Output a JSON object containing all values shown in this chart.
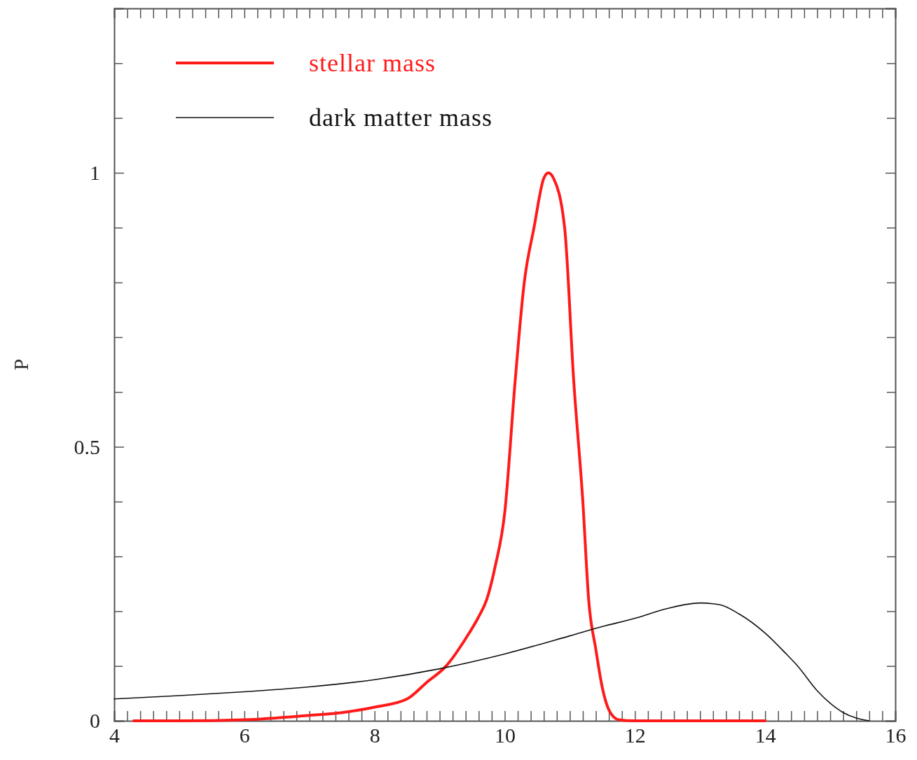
{
  "chart_data": {
    "type": "line",
    "ylabel": "P",
    "xlim": [
      4,
      16
    ],
    "ylim": [
      0,
      1.3
    ],
    "xticks": [
      4,
      {
        "value": 4.2,
        "label": null
      },
      {
        "value": 4.4,
        "label": null
      },
      {
        "value": 4.6,
        "label": null
      },
      {
        "value": 4.8,
        "label": null
      },
      {
        "value": 5,
        "label": null
      },
      {
        "value": 5.2,
        "label": null
      },
      {
        "value": 5.4,
        "label": null
      },
      {
        "value": 5.6,
        "label": null
      },
      {
        "value": 5.8,
        "label": null
      },
      6,
      {
        "value": 6.2,
        "label": null
      },
      {
        "value": 6.4,
        "label": null
      },
      {
        "value": 6.6,
        "label": null
      },
      {
        "value": 6.8,
        "label": null
      },
      {
        "value": 7,
        "label": null
      },
      {
        "value": 7.2,
        "label": null
      },
      {
        "value": 7.4,
        "label": null
      },
      {
        "value": 7.6,
        "label": null
      },
      {
        "value": 7.8,
        "label": null
      },
      8,
      {
        "value": 8.2,
        "label": null
      },
      {
        "value": 8.4,
        "label": null
      },
      {
        "value": 8.6,
        "label": null
      },
      {
        "value": 8.8,
        "label": null
      },
      {
        "value": 9,
        "label": null
      },
      {
        "value": 9.2,
        "label": null
      },
      {
        "value": 9.4,
        "label": null
      },
      {
        "value": 9.6,
        "label": null
      },
      {
        "value": 9.8,
        "label": null
      },
      10,
      {
        "value": 10.2,
        "label": null
      },
      {
        "value": 10.4,
        "label": null
      },
      {
        "value": 10.6,
        "label": null
      },
      {
        "value": 10.8,
        "label": null
      },
      {
        "value": 11,
        "label": null
      },
      {
        "value": 11.2,
        "label": null
      },
      {
        "value": 11.4,
        "label": null
      },
      {
        "value": 11.6,
        "label": null
      },
      {
        "value": 11.8,
        "label": null
      },
      12,
      {
        "value": 12.2,
        "label": null
      },
      {
        "value": 12.4,
        "label": null
      },
      {
        "value": 12.6,
        "label": null
      },
      {
        "value": 12.8,
        "label": null
      },
      {
        "value": 13,
        "label": null
      },
      {
        "value": 13.2,
        "label": null
      },
      {
        "value": 13.4,
        "label": null
      },
      {
        "value": 13.6,
        "label": null
      },
      {
        "value": 13.8,
        "label": null
      },
      14,
      {
        "value": 14.2,
        "label": null
      },
      {
        "value": 14.4,
        "label": null
      },
      {
        "value": 14.6,
        "label": null
      },
      {
        "value": 14.8,
        "label": null
      },
      {
        "value": 15,
        "label": null
      },
      {
        "value": 15.2,
        "label": null
      },
      {
        "value": 15.4,
        "label": null
      },
      {
        "value": 15.6,
        "label": null
      },
      {
        "value": 15.8,
        "label": null
      },
      16
    ],
    "yticks": [
      0,
      {
        "value": 0.1,
        "label": null
      },
      {
        "value": 0.2,
        "label": null
      },
      {
        "value": 0.3,
        "label": null
      },
      {
        "value": 0.4,
        "label": null
      },
      0.5,
      {
        "value": 0.6,
        "label": null
      },
      {
        "value": 0.7,
        "label": null
      },
      {
        "value": 0.8,
        "label": null
      },
      {
        "value": 0.9,
        "label": null
      },
      1,
      {
        "value": 1.1,
        "label": null
      },
      {
        "value": 1.2,
        "label": null
      },
      {
        "value": 1.3,
        "label": null
      }
    ],
    "legend": "top left",
    "marker": "none",
    "series": [
      {
        "name": "stellar mass",
        "color": "#ff1a1a",
        "x": [
          4.3,
          5,
          6,
          7,
          7.5,
          8,
          8.5,
          8.8,
          9.1,
          9.4,
          9.6,
          9.72,
          9.85,
          10,
          10.16,
          10.3,
          10.45,
          10.6,
          10.67,
          10.75,
          10.92,
          11.06,
          11.2,
          11.29,
          11.4,
          11.5,
          11.6,
          11.75,
          12,
          14
        ],
        "values": [
          0,
          0,
          0.002,
          0.01,
          0.015,
          0.025,
          0.04,
          0.07,
          0.1,
          0.15,
          0.19,
          0.22,
          0.28,
          0.38,
          0.62,
          0.8,
          0.9,
          0.99,
          1,
          0.99,
          0.9,
          0.62,
          0.4,
          0.22,
          0.13,
          0.06,
          0.02,
          0.002,
          0,
          0
        ]
      },
      {
        "name": "dark matter mass",
        "color": "#111111",
        "x": [
          4,
          5,
          6,
          7,
          8,
          9,
          10,
          11,
          11.5,
          12,
          12.5,
          13,
          13.3,
          13.6,
          14,
          14.3,
          14.5,
          14.8,
          15,
          15.2,
          15.4,
          15.6
        ],
        "values": [
          0.04,
          0.046,
          0.053,
          0.062,
          0.075,
          0.095,
          0.122,
          0.155,
          0.172,
          0.187,
          0.205,
          0.215,
          0.212,
          0.195,
          0.16,
          0.125,
          0.1,
          0.055,
          0.032,
          0.015,
          0.005,
          0
        ]
      }
    ]
  }
}
